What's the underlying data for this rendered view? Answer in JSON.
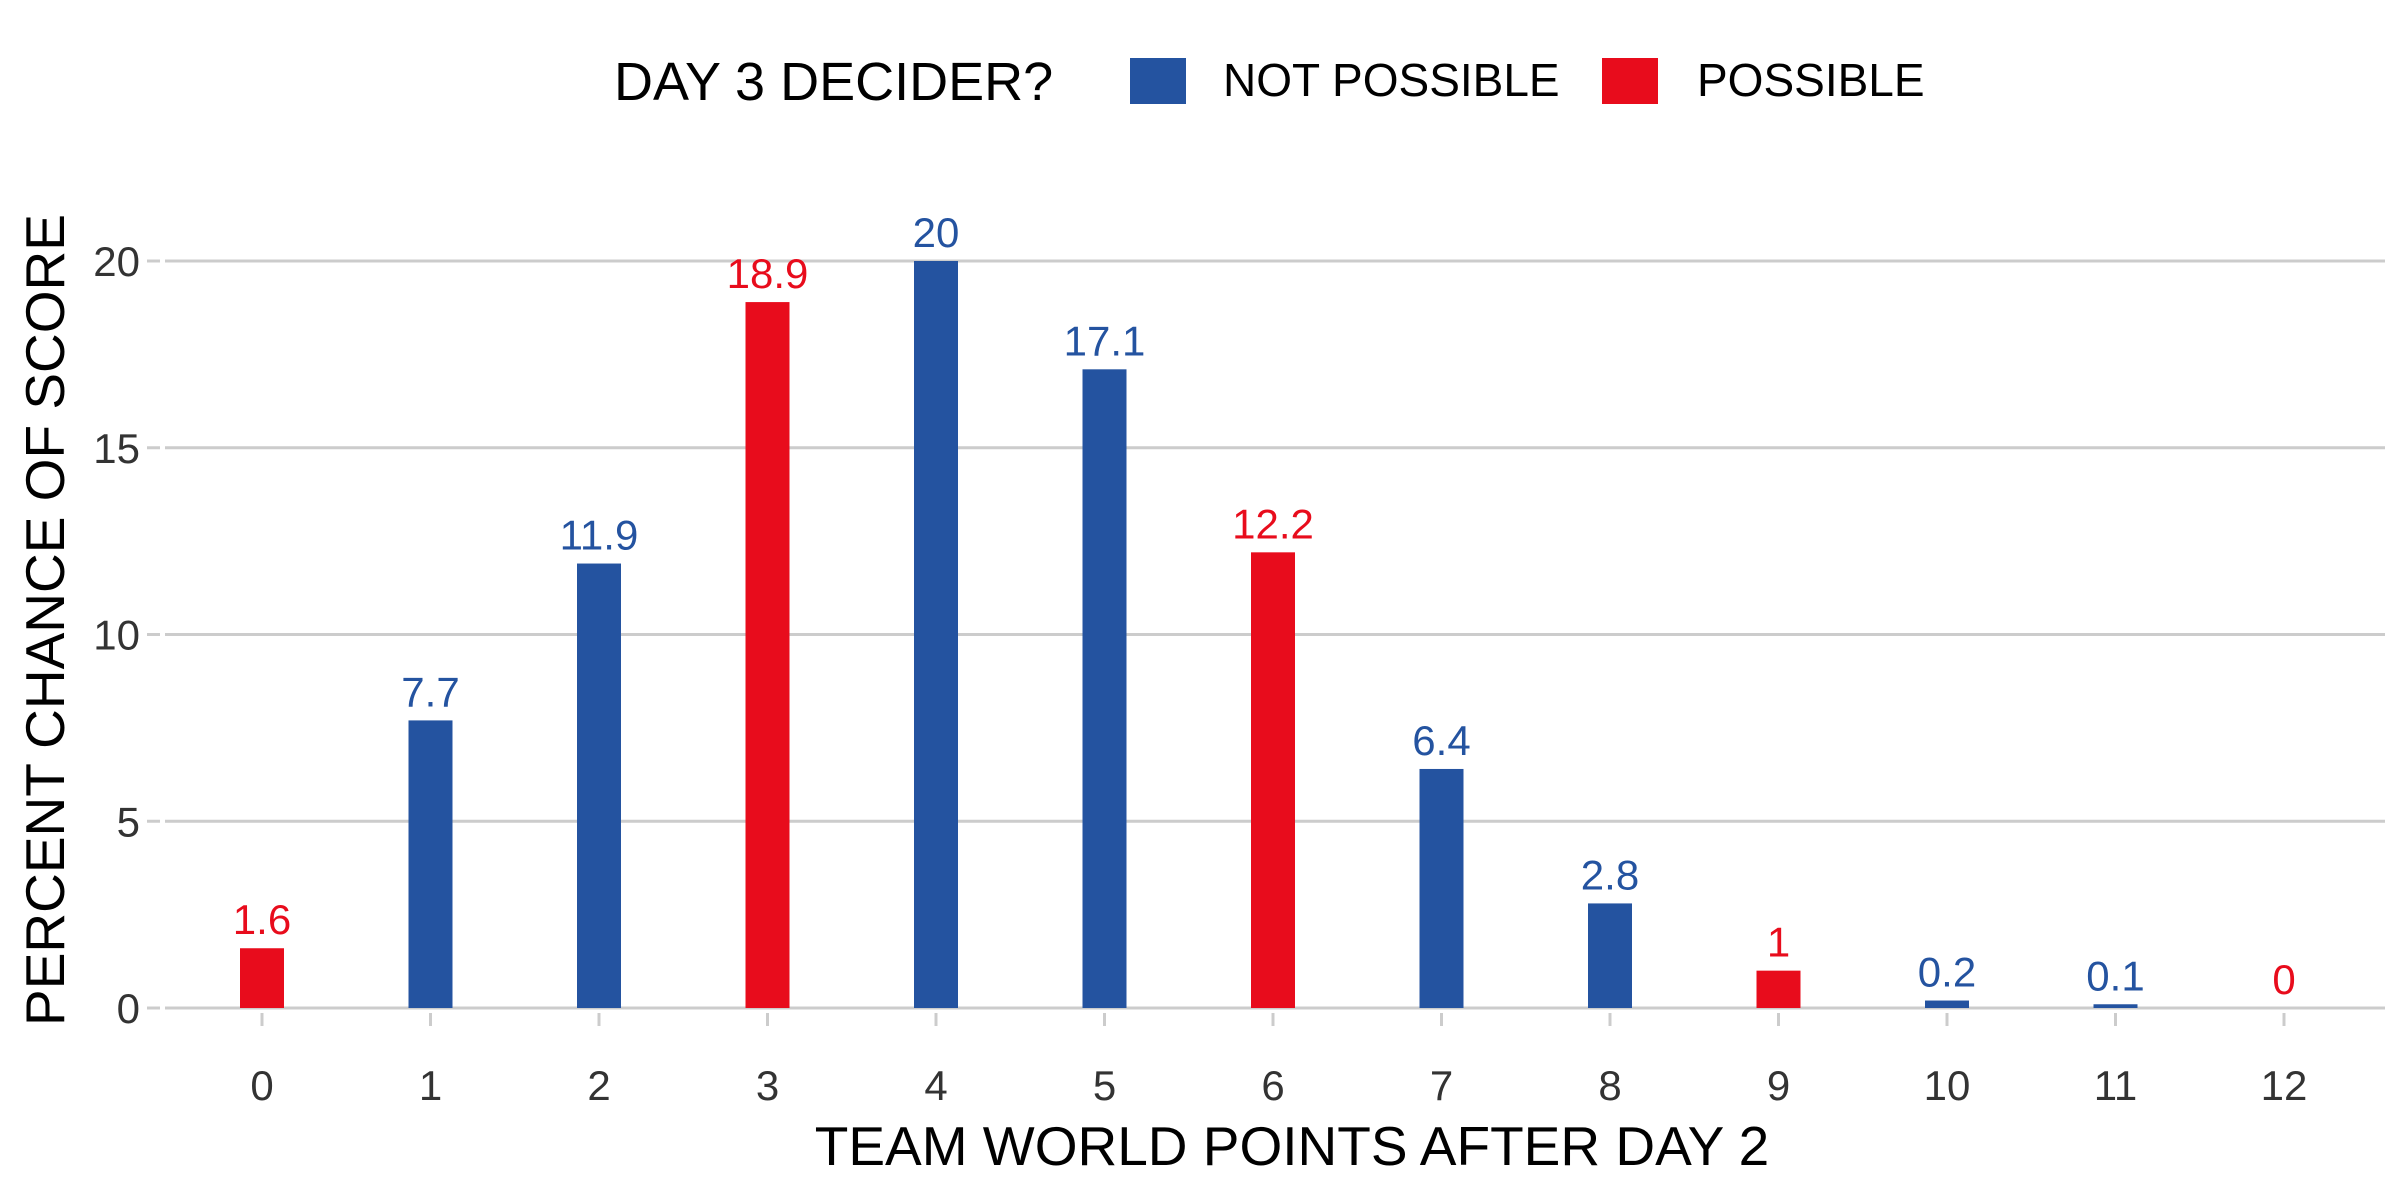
{
  "chart_data": {
    "type": "bar",
    "legend": {
      "title": "DAY 3 DECIDER?",
      "position": "top",
      "entries": [
        {
          "label": "NOT POSSIBLE",
          "key": "not_possible"
        },
        {
          "label": "POSSIBLE",
          "key": "possible"
        }
      ]
    },
    "colors": {
      "not_possible": "#2453A0",
      "possible": "#E80C1C",
      "grid": "#CCCCCC",
      "tick_text": "#333333",
      "title_text": "#000000"
    },
    "categories": [
      "0",
      "1",
      "2",
      "3",
      "4",
      "5",
      "6",
      "7",
      "8",
      "9",
      "10",
      "11",
      "12"
    ],
    "values": [
      1.6,
      7.7,
      11.9,
      18.9,
      20,
      17.1,
      12.2,
      6.4,
      2.8,
      1,
      0.2,
      0.1,
      0
    ],
    "value_labels": [
      "1.6",
      "7.7",
      "11.9",
      "18.9",
      "20",
      "17.1",
      "12.2",
      "6.4",
      "2.8",
      "1",
      "0.2",
      "0.1",
      "0"
    ],
    "groups": [
      "possible",
      "not_possible",
      "not_possible",
      "possible",
      "not_possible",
      "not_possible",
      "possible",
      "not_possible",
      "not_possible",
      "possible",
      "not_possible",
      "not_possible",
      "possible"
    ],
    "xlabel": "TEAM WORLD POINTS AFTER DAY 2",
    "ylabel": "PERCENT CHANCE OF SCORE",
    "yticks": [
      "0",
      "5",
      "10",
      "15",
      "20"
    ],
    "ylim": [
      0,
      22
    ],
    "grid": true
  }
}
